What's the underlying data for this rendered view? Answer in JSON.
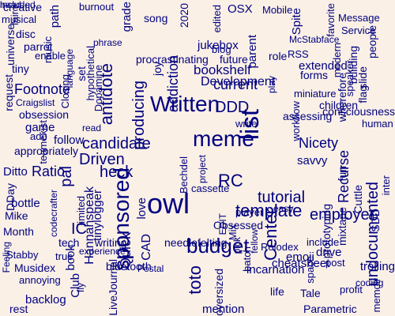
{
  "cloud": {
    "background": "#faf0e6",
    "word_color": "#000080",
    "words": [
      "creative",
      "musical",
      "disc",
      "fair",
      "parrot",
      "tiny",
      "enable",
      "path",
      "music",
      "burnout",
      "grade",
      "song",
      "2020",
      "edited",
      "OSX",
      "Mobile",
      "Spite",
      "favorite",
      "Message",
      "Service",
      "McStabface",
      "universe",
      "request",
      "Footnote",
      "Craigslist",
      "obsession",
      "game",
      "ado",
      "teamexist",
      "appropriately",
      "follow",
      "Ditto",
      "Ratio",
      "DDay",
      "bottle",
      "Mike",
      "Month",
      "Feeling",
      "Stabby",
      "Musidex",
      "annoying",
      "backlog",
      "rest",
      "language",
      "hypothetical",
      "Closing",
      "set",
      "phrase",
      "procrastinating",
      "joy",
      "addiction",
      "jukebox",
      "future",
      "blog",
      "parent",
      "role",
      "RSS",
      "modern",
      "building",
      "people",
      "extended",
      "forms",
      "play",
      "miniature",
      "antidote",
      "Written",
      "DDD",
      "Development",
      "bookshelf",
      "current",
      "Dopamine",
      "producing",
      "candidate",
      "Driven",
      "heck",
      "meme",
      "list",
      "write",
      "read",
      "workflow",
      "assessing",
      "children",
      "wherefore",
      "slide",
      "speaker",
      "flag",
      "consciousness",
      "human",
      "Nicety",
      "savvy",
      "Recurse",
      "sponsored",
      "RC",
      "Bechdel",
      "project",
      "cassette",
      "tutorial",
      "template",
      "easy",
      "fun",
      "Cuttle",
      "undocumented",
      "inter",
      "pal",
      "codecrafter",
      "limited",
      "Hannahspeak",
      "tinylogger",
      "love",
      "owl",
      "IC",
      "tech",
      "writing",
      "Quick",
      "Mix",
      "player",
      "fellow",
      "Center",
      "employer",
      "prototyping",
      "mixtape",
      "SDD",
      "include",
      "drive",
      "Rolodex",
      "book",
      "true",
      "Club",
      "experience",
      "fly",
      "bluetooth",
      "LiveJournal",
      "Postal",
      "CAD",
      "budget",
      "needlefelting",
      "EDIT",
      "Obsessed",
      "toto",
      "pick",
      "batch",
      "incarnation",
      "cheatsheet",
      "emoji",
      "space",
      "post",
      "oversized",
      "mention",
      "life",
      "Tale",
      "Parametric",
      "profit",
      "coding",
      "trolling",
      "memoir",
      "head",
      "included"
    ]
  }
}
